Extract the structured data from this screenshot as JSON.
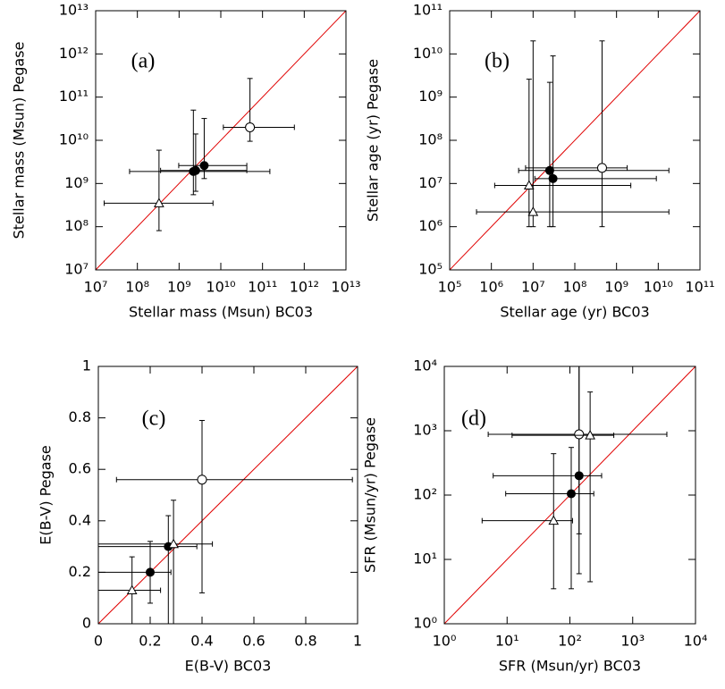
{
  "chart_data": [
    {
      "type": "scatter",
      "title": "(a)",
      "x_label": "Stellar mass (Msun) BC03",
      "y_label": "Stellar mass (Msun) Pegase",
      "log_x": true,
      "log_y": true,
      "diagonal_color": "#e00000",
      "xlim": [
        10000000.0,
        10000000000000.0
      ],
      "ylim": [
        10000000.0,
        10000000000000.0
      ],
      "xticks": [
        {
          "value": 10000000.0,
          "label": "10⁷"
        },
        {
          "value": 100000000.0,
          "label": "10⁸"
        },
        {
          "value": 1000000000.0,
          "label": "10⁹"
        },
        {
          "value": 10000000000.0,
          "label": "10¹⁰"
        },
        {
          "value": 100000000000.0,
          "label": "10¹¹"
        },
        {
          "value": 1000000000000.0,
          "label": "10¹²"
        },
        {
          "value": 10000000000000.0,
          "label": "10¹³"
        }
      ],
      "yticks": [
        {
          "value": 10000000.0,
          "label": "10⁷"
        },
        {
          "value": 100000000.0,
          "label": "10⁸"
        },
        {
          "value": 1000000000.0,
          "label": "10⁹"
        },
        {
          "value": 10000000000.0,
          "label": "10¹⁰"
        },
        {
          "value": 100000000000.0,
          "label": "10¹¹"
        },
        {
          "value": 1000000000000.0,
          "label": "10¹²"
        },
        {
          "value": 10000000000000.0,
          "label": "10¹³"
        }
      ],
      "series": [
        {
          "marker": "filled-circle",
          "color": "#000000",
          "x": [
            2200000000.0,
            2500000000.0,
            4000000000.0
          ],
          "values": [
            1900000000.0,
            2000000000.0,
            2600000000.0
          ],
          "x_low": [
            65000000.0,
            360000000.0,
            980000000.0
          ],
          "x_high": [
            150000000000.0,
            42000000000.0,
            42000000000.0
          ],
          "y_low": [
            550000000.0,
            660000000.0,
            1300000000.0
          ],
          "y_high": [
            50000000000.0,
            14000000000.0,
            32000000000.0
          ]
        },
        {
          "marker": "open-circle",
          "color": "#000000",
          "x": [
            50000000000.0
          ],
          "values": [
            20000000000.0
          ],
          "x_low": [
            11500000000.0
          ],
          "x_high": [
            580000000000.0
          ],
          "y_low": [
            9500000000.0
          ],
          "y_high": [
            270000000000.0
          ]
        },
        {
          "marker": "triangle",
          "color": "#000000",
          "x": [
            330000000.0
          ],
          "values": [
            350000000.0
          ],
          "x_low": [
            16000000.0
          ],
          "x_high": [
            6500000000.0
          ],
          "y_low": [
            81000000.0
          ],
          "y_high": [
            5900000000.0
          ]
        }
      ]
    },
    {
      "type": "scatter",
      "title": "(b)",
      "x_label": "Stellar age (yr) BC03",
      "y_label": "Stellar age (yr) Pegase",
      "log_x": true,
      "log_y": true,
      "diagonal_color": "#e00000",
      "xlim": [
        100000.0,
        100000000000.0
      ],
      "ylim": [
        100000.0,
        100000000000.0
      ],
      "xticks": [
        {
          "value": 100000.0,
          "label": "10⁵"
        },
        {
          "value": 1000000.0,
          "label": "10⁶"
        },
        {
          "value": 10000000.0,
          "label": "10⁷"
        },
        {
          "value": 100000000.0,
          "label": "10⁸"
        },
        {
          "value": 1000000000.0,
          "label": "10⁹"
        },
        {
          "value": 10000000000.0,
          "label": "10¹⁰"
        },
        {
          "value": 100000000000.0,
          "label": "10¹¹"
        }
      ],
      "yticks": [
        {
          "value": 100000.0,
          "label": "10⁵"
        },
        {
          "value": 1000000.0,
          "label": "10⁶"
        },
        {
          "value": 10000000.0,
          "label": "10⁷"
        },
        {
          "value": 100000000.0,
          "label": "10⁸"
        },
        {
          "value": 1000000000.0,
          "label": "10⁹"
        },
        {
          "value": 10000000000.0,
          "label": "10¹⁰"
        },
        {
          "value": 100000000000.0,
          "label": "10¹¹"
        }
      ],
      "series": [
        {
          "marker": "filled-circle",
          "color": "#000000",
          "x": [
            25000000.0,
            30000000.0
          ],
          "values": [
            20000000.0,
            13000000.0
          ],
          "x_low": [
            4500000.0,
            11000000.0
          ],
          "x_high": [
            18000000000.0,
            9000000000.0
          ],
          "y_low": [
            1000000.0,
            1000000.0
          ],
          "y_high": [
            2200000000.0,
            9000000000.0
          ]
        },
        {
          "marker": "open-circle",
          "color": "#000000",
          "x": [
            450000000.0
          ],
          "values": [
            23000000.0
          ],
          "x_low": [
            6600000.0
          ],
          "x_high": [
            1800000000.0
          ],
          "y_low": [
            1000000.0
          ],
          "y_high": [
            20000000000.0
          ]
        },
        {
          "marker": "triangle",
          "color": "#000000",
          "x": [
            8000000.0,
            10000000.0
          ],
          "values": [
            9000000.0,
            2200000.0
          ],
          "x_low": [
            1200000.0,
            440000.0
          ],
          "x_high": [
            2200000000.0,
            18000000000.0
          ],
          "y_low": [
            1000000.0,
            1000000.0
          ],
          "y_high": [
            2600000000.0,
            20000000000.0
          ]
        }
      ]
    },
    {
      "type": "scatter",
      "title": "(c)",
      "x_label": "E(B-V) BC03",
      "y_label": "E(B-V) Pegase",
      "log_x": false,
      "log_y": false,
      "diagonal_color": "#e00000",
      "xlim": [
        0,
        1
      ],
      "ylim": [
        0,
        1
      ],
      "xticks": [
        0,
        0.2,
        0.4,
        0.6,
        0.8,
        1
      ],
      "yticks": [
        0,
        0.2,
        0.4,
        0.6,
        0.8,
        1
      ],
      "series": [
        {
          "marker": "filled-circle",
          "color": "#000000",
          "x": [
            0.2,
            0.27
          ],
          "values": [
            0.2,
            0.3
          ],
          "x_low": [
            0,
            0
          ],
          "x_high": [
            0.28,
            0.38
          ],
          "y_low": [
            0.08,
            0
          ],
          "y_high": [
            0.32,
            0.42
          ]
        },
        {
          "marker": "open-circle",
          "color": "#000000",
          "x": [
            0.4
          ],
          "values": [
            0.56
          ],
          "x_low": [
            0.07
          ],
          "x_high": [
            0.98
          ],
          "y_low": [
            0.12
          ],
          "y_high": [
            0.79
          ]
        },
        {
          "marker": "triangle",
          "color": "#000000",
          "x": [
            0.13,
            0.29
          ],
          "values": [
            0.13,
            0.31
          ],
          "x_low": [
            0,
            0
          ],
          "x_high": [
            0.24,
            0.44
          ],
          "y_low": [
            0,
            0
          ],
          "y_high": [
            0.26,
            0.48
          ]
        }
      ]
    },
    {
      "type": "scatter",
      "title": "(d)",
      "x_label": "SFR (Msun/yr) BC03",
      "y_label": "SFR (Msun/yr) Pegase",
      "log_x": true,
      "log_y": true,
      "diagonal_color": "#e00000",
      "xlim": [
        1,
        10000
      ],
      "ylim": [
        1,
        10000
      ],
      "xticks": [
        {
          "value": 1,
          "label": "10⁰"
        },
        {
          "value": 10,
          "label": "10¹"
        },
        {
          "value": 100,
          "label": "10²"
        },
        {
          "value": 1000,
          "label": "10³"
        },
        {
          "value": 10000,
          "label": "10⁴"
        }
      ],
      "yticks": [
        {
          "value": 1,
          "label": "10⁰"
        },
        {
          "value": 10,
          "label": "10¹"
        },
        {
          "value": 100,
          "label": "10²"
        },
        {
          "value": 1000,
          "label": "10³"
        },
        {
          "value": 10000,
          "label": "10⁴"
        }
      ],
      "series": [
        {
          "marker": "filled-circle",
          "color": "#000000",
          "x": [
            140,
            105
          ],
          "values": [
            200,
            105
          ],
          "x_low": [
            6,
            9.5
          ],
          "x_high": [
            320,
            240
          ],
          "y_low": [
            6,
            3.5
          ],
          "y_high": [
            10000,
            550
          ]
        },
        {
          "marker": "open-circle",
          "color": "#000000",
          "x": [
            140
          ],
          "values": [
            880
          ],
          "x_low": [
            5
          ],
          "x_high": [
            3500
          ],
          "y_low": [
            25
          ],
          "y_high": [
            10000
          ]
        },
        {
          "marker": "triangle",
          "color": "#000000",
          "x": [
            210,
            55
          ],
          "values": [
            850,
            40
          ],
          "x_low": [
            12,
            4
          ],
          "x_high": [
            500,
            110
          ],
          "y_low": [
            4.5,
            3.5
          ],
          "y_high": [
            4000,
            440
          ]
        }
      ]
    }
  ]
}
